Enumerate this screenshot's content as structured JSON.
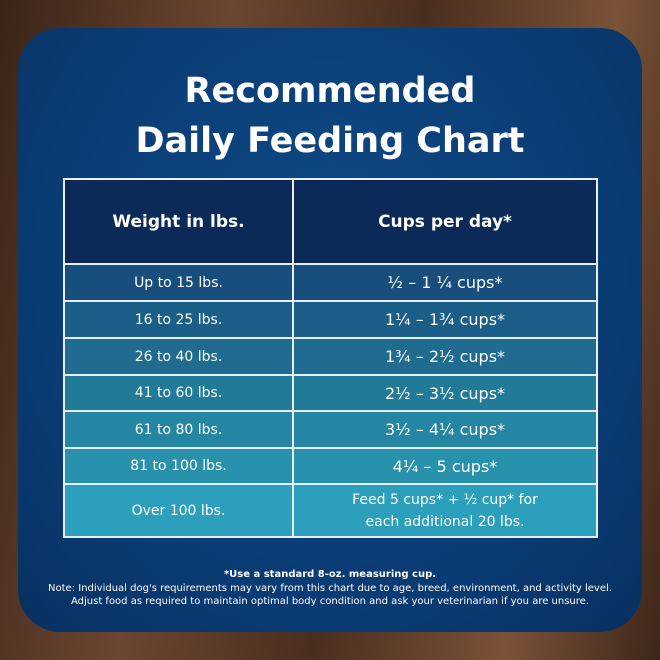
{
  "title_lines": [
    "Recommended",
    "Daily Feeding Chart"
  ],
  "table": {
    "headers": [
      "Weight in lbs.",
      "Cups per day*"
    ],
    "rows": [
      [
        "Up to 15 lbs.",
        "½ – 1 ¼ cups*"
      ],
      [
        "16 to 25 lbs.",
        "1¼ – 1¾  cups*"
      ],
      [
        "26 to 40 lbs.",
        "1¾ – 2½ cups*"
      ],
      [
        "41 to 60 lbs.",
        "2½ – 3½ cups*"
      ],
      [
        "61 to 80 lbs.",
        "3½ – 4¼ cups*"
      ],
      [
        "81 to 100 lbs.",
        "4¼ – 5 cups*"
      ],
      [
        "Over 100 lbs.",
        "Feed 5 cups*  + ½ cup* for each  additional 20 lbs."
      ]
    ]
  },
  "footnotes": [
    "*Use a standard 8-oz. measuring cup.",
    "Note: Individual dog's requirements may vary from this chart due to age, breed, environment, and activity level.",
    "Adjust food as required to maintain optimal body condition and ask your veterinarian if you are unsure."
  ]
}
